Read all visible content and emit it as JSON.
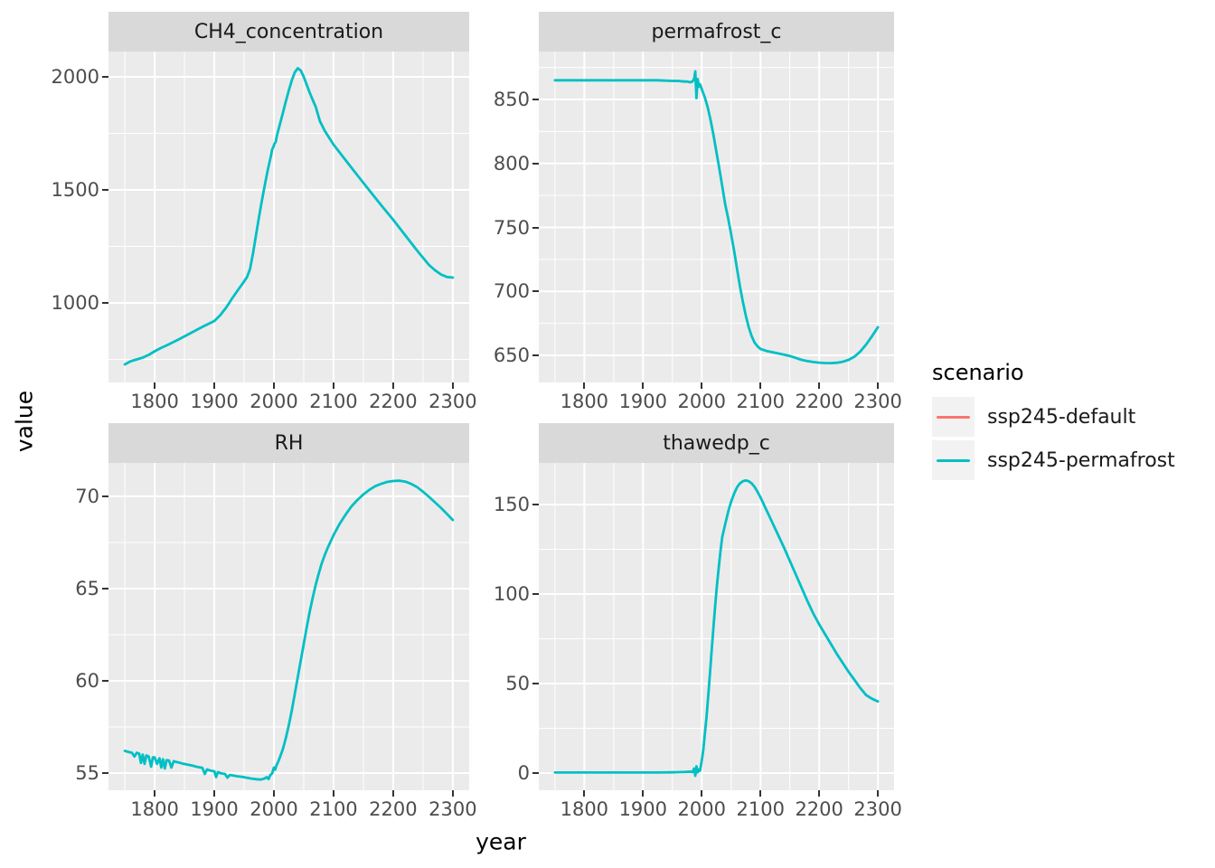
{
  "figure": {
    "y_axis_title": "value",
    "x_axis_title": "year",
    "background": "#FFFFFF",
    "panel_background": "#EBEBEB",
    "strip_background": "#D9D9D9",
    "grid_color": "#FFFFFF",
    "tick_color": "#333333",
    "tick_label_color": "#4D4D4D"
  },
  "legend": {
    "title": "scenario",
    "key_background": "#F2F2F2",
    "entries": [
      {
        "label": "ssp245-default",
        "color": "#F8766D"
      },
      {
        "label": "ssp245-permafrost",
        "color": "#00BFC4"
      }
    ]
  },
  "chart_data": [
    {
      "type": "line",
      "title": "CH4_concentration",
      "xlim": [
        1722.5,
        2327.5
      ],
      "ylim": [
        648,
        2112
      ],
      "x_ticks": [
        1800,
        1900,
        2000,
        2100,
        2200,
        2300
      ],
      "x_minor": [
        1750,
        1850,
        1950,
        2050,
        2150,
        2250
      ],
      "y_ticks": [
        1000,
        1500,
        2000
      ],
      "y_minor": [
        750,
        1250,
        1750
      ],
      "series": [
        {
          "name": "ssp245-permafrost",
          "color": "#00BFC4",
          "x": [
            1750,
            1760,
            1770,
            1780,
            1790,
            1800,
            1810,
            1820,
            1830,
            1840,
            1850,
            1860,
            1870,
            1880,
            1890,
            1900,
            1910,
            1920,
            1930,
            1940,
            1950,
            1955,
            1960,
            1965,
            1970,
            1975,
            1980,
            1985,
            1990,
            1995,
            1997,
            1999,
            2001,
            2003,
            2005,
            2010,
            2015,
            2020,
            2025,
            2030,
            2035,
            2040,
            2045,
            2050,
            2055,
            2060,
            2065,
            2070,
            2077,
            2085,
            2100,
            2120,
            2140,
            2160,
            2180,
            2200,
            2220,
            2240,
            2260,
            2270,
            2280,
            2290,
            2300
          ],
          "y": [
            728,
            742,
            750,
            758,
            770,
            786,
            800,
            812,
            825,
            838,
            852,
            866,
            880,
            894,
            907,
            920,
            946,
            980,
            1020,
            1058,
            1095,
            1115,
            1150,
            1220,
            1300,
            1380,
            1455,
            1525,
            1592,
            1650,
            1678,
            1690,
            1705,
            1712,
            1740,
            1790,
            1840,
            1892,
            1940,
            1985,
            2020,
            2038,
            2028,
            2000,
            1965,
            1930,
            1898,
            1868,
            1805,
            1762,
            1700,
            1632,
            1565,
            1498,
            1432,
            1368,
            1300,
            1232,
            1168,
            1145,
            1126,
            1115,
            1112
          ]
        }
      ]
    },
    {
      "type": "line",
      "title": "permafrost_c",
      "xlim": [
        1722.5,
        2327.5
      ],
      "ylim": [
        628.8,
        887.5
      ],
      "x_ticks": [
        1800,
        1900,
        2000,
        2100,
        2200,
        2300
      ],
      "x_minor": [
        1750,
        1850,
        1950,
        2050,
        2150,
        2250
      ],
      "y_ticks": [
        650,
        700,
        750,
        800,
        850
      ],
      "y_minor": [
        675,
        725,
        775,
        825,
        875
      ],
      "series": [
        {
          "name": "ssp245-permafrost",
          "color": "#00BFC4",
          "x": [
            1750,
            1775,
            1800,
            1825,
            1850,
            1875,
            1900,
            1925,
            1950,
            1960,
            1970,
            1975,
            1980,
            1984,
            1987,
            1989,
            1991,
            1993,
            1995,
            1997,
            2000,
            2005,
            2010,
            2015,
            2020,
            2025,
            2030,
            2035,
            2040,
            2045,
            2050,
            2055,
            2060,
            2065,
            2070,
            2075,
            2080,
            2085,
            2090,
            2095,
            2100,
            2110,
            2120,
            2130,
            2140,
            2150,
            2160,
            2170,
            2180,
            2190,
            2200,
            2210,
            2220,
            2230,
            2240,
            2250,
            2260,
            2270,
            2280,
            2290,
            2300
          ],
          "y": [
            865,
            865,
            865,
            865,
            865,
            865,
            865,
            865,
            864.5,
            864.5,
            864,
            864,
            863.5,
            864,
            866,
            872,
            851,
            866,
            860,
            862,
            858,
            852,
            844,
            834,
            822,
            809,
            796,
            782,
            768,
            757,
            745,
            732,
            718,
            704,
            692,
            681,
            672,
            665,
            660,
            657,
            655,
            653.5,
            652.5,
            651.5,
            650.5,
            649.5,
            648,
            646.5,
            645.5,
            644.8,
            644.3,
            644,
            643.9,
            644.2,
            645,
            646.5,
            649,
            653,
            658.5,
            665,
            672
          ]
        }
      ]
    },
    {
      "type": "line",
      "title": "RH",
      "xlim": [
        1722.5,
        2327.5
      ],
      "ylim": [
        54.07,
        71.81
      ],
      "x_ticks": [
        1800,
        1900,
        2000,
        2100,
        2200,
        2300
      ],
      "x_minor": [
        1750,
        1850,
        1950,
        2050,
        2150,
        2250
      ],
      "y_ticks": [
        55,
        60,
        65,
        70
      ],
      "y_minor": [
        57.5,
        62.5,
        67.5
      ],
      "series": [
        {
          "name": "ssp245-permafrost",
          "color": "#00BFC4",
          "x": [
            1750,
            1756,
            1762,
            1766,
            1770,
            1774,
            1777,
            1780,
            1783,
            1786,
            1790,
            1794,
            1797,
            1800,
            1804,
            1808,
            1811,
            1814,
            1817,
            1820,
            1824,
            1828,
            1832,
            1836,
            1840,
            1848,
            1856,
            1864,
            1872,
            1880,
            1884,
            1888,
            1892,
            1896,
            1900,
            1903,
            1906,
            1910,
            1914,
            1918,
            1922,
            1926,
            1930,
            1938,
            1946,
            1954,
            1962,
            1970,
            1978,
            1984,
            1988,
            1991,
            1994,
            1997,
            2000,
            2002,
            2004,
            2007,
            2010,
            2015,
            2020,
            2025,
            2030,
            2035,
            2040,
            2045,
            2050,
            2055,
            2060,
            2065,
            2070,
            2075,
            2080,
            2085,
            2090,
            2095,
            2100,
            2110,
            2120,
            2130,
            2140,
            2150,
            2160,
            2170,
            2180,
            2190,
            2200,
            2210,
            2220,
            2230,
            2240,
            2250,
            2260,
            2270,
            2280,
            2290,
            2300
          ],
          "y": [
            56.2,
            56.15,
            56.1,
            55.9,
            56.1,
            56.05,
            55.55,
            56.0,
            55.5,
            55.95,
            55.9,
            55.35,
            55.85,
            55.85,
            55.5,
            55.8,
            55.3,
            55.75,
            55.25,
            55.7,
            55.68,
            55.3,
            55.65,
            55.6,
            55.58,
            55.5,
            55.45,
            55.4,
            55.33,
            55.28,
            54.95,
            55.2,
            55.15,
            55.12,
            55.1,
            54.78,
            55.05,
            55.0,
            54.97,
            54.95,
            54.75,
            54.9,
            54.88,
            54.83,
            54.8,
            54.75,
            54.7,
            54.67,
            54.65,
            54.7,
            54.78,
            54.68,
            54.9,
            54.98,
            55.3,
            55.18,
            55.4,
            55.6,
            55.85,
            56.3,
            56.9,
            57.6,
            58.4,
            59.3,
            60.2,
            61.1,
            62.0,
            62.9,
            63.75,
            64.5,
            65.2,
            65.8,
            66.35,
            66.8,
            67.2,
            67.55,
            67.9,
            68.5,
            69.0,
            69.45,
            69.8,
            70.1,
            70.35,
            70.55,
            70.68,
            70.78,
            70.83,
            70.85,
            70.8,
            70.68,
            70.5,
            70.25,
            69.97,
            69.68,
            69.38,
            69.05,
            68.72
          ]
        }
      ]
    },
    {
      "type": "line",
      "title": "thawedp_c",
      "xlim": [
        1722.5,
        2327.5
      ],
      "ylim": [
        -9.6,
        173.2
      ],
      "x_ticks": [
        1800,
        1900,
        2000,
        2100,
        2200,
        2300
      ],
      "x_minor": [
        1750,
        1850,
        1950,
        2050,
        2150,
        2250
      ],
      "y_ticks": [
        0,
        50,
        100,
        150
      ],
      "y_minor": [
        25,
        75,
        125
      ],
      "series": [
        {
          "name": "ssp245-permafrost",
          "color": "#00BFC4",
          "x": [
            1750,
            1800,
            1850,
            1900,
            1925,
            1950,
            1960,
            1970,
            1975,
            1980,
            1984,
            1987,
            1989,
            1991,
            1993,
            1995,
            1997,
            1999,
            2001,
            2003,
            2005,
            2008,
            2011,
            2014,
            2017,
            2020,
            2023,
            2026,
            2029,
            2032,
            2035,
            2040,
            2045,
            2050,
            2055,
            2060,
            2065,
            2070,
            2075,
            2080,
            2085,
            2090,
            2095,
            2100,
            2110,
            2120,
            2130,
            2140,
            2150,
            2160,
            2170,
            2180,
            2190,
            2200,
            2210,
            2220,
            2230,
            2240,
            2250,
            2260,
            2270,
            2280,
            2290,
            2300
          ],
          "y": [
            0.3,
            0.3,
            0.3,
            0.3,
            0.3,
            0.4,
            0.5,
            0.6,
            0.7,
            0.8,
            0.5,
            2.5,
            -1.5,
            3.8,
            0.4,
            2.0,
            1.2,
            5,
            9,
            14,
            21,
            31,
            43,
            56,
            69,
            82,
            94,
            105,
            115,
            124,
            132,
            139,
            146,
            151.5,
            156,
            159.5,
            161.8,
            163,
            163.4,
            163,
            161.8,
            159.8,
            157,
            154,
            147,
            140,
            133,
            126,
            118.5,
            111,
            103.5,
            96,
            89,
            83,
            77.5,
            72,
            66.5,
            61.5,
            56.5,
            52,
            47.5,
            43.5,
            41.5,
            40
          ]
        }
      ]
    }
  ]
}
